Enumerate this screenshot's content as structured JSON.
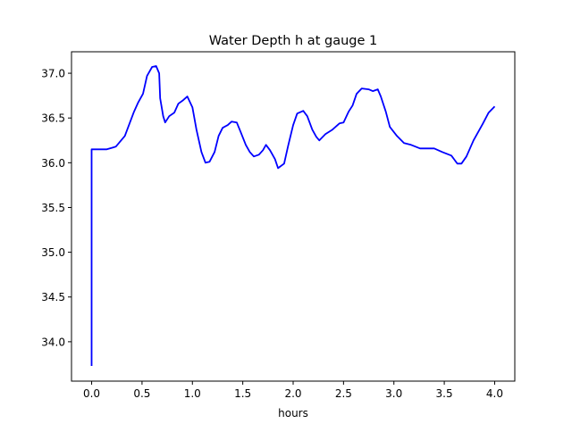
{
  "chart_data": {
    "type": "line",
    "title": "Water Depth h at gauge 1",
    "xlabel": "hours",
    "ylabel": "",
    "xlim": [
      -0.2,
      4.2
    ],
    "ylim": [
      33.56,
      37.24
    ],
    "xticks": [
      0.0,
      0.5,
      1.0,
      1.5,
      2.0,
      2.5,
      3.0,
      3.5,
      4.0
    ],
    "xtick_labels": [
      "0.0",
      "0.5",
      "1.0",
      "1.5",
      "2.0",
      "2.5",
      "3.0",
      "3.5",
      "4.0"
    ],
    "yticks": [
      34.0,
      34.5,
      35.0,
      35.5,
      36.0,
      36.5,
      37.0
    ],
    "ytick_labels": [
      "34.0",
      "34.5",
      "35.0",
      "35.5",
      "36.0",
      "36.5",
      "37.0"
    ],
    "grid": false,
    "series": [
      {
        "name": "h",
        "color": "#0000ff",
        "x": [
          0.0,
          0.0,
          0.15,
          0.24,
          0.33,
          0.42,
          0.46,
          0.51,
          0.55,
          0.6,
          0.64,
          0.67,
          0.68,
          0.71,
          0.73,
          0.77,
          0.82,
          0.86,
          0.91,
          0.95,
          1.0,
          1.04,
          1.09,
          1.13,
          1.17,
          1.22,
          1.26,
          1.3,
          1.35,
          1.39,
          1.44,
          1.48,
          1.53,
          1.57,
          1.61,
          1.66,
          1.7,
          1.73,
          1.77,
          1.82,
          1.85,
          1.91,
          1.95,
          2.0,
          2.04,
          2.1,
          2.14,
          2.19,
          2.23,
          2.26,
          2.32,
          2.39,
          2.46,
          2.5,
          2.55,
          2.59,
          2.63,
          2.68,
          2.75,
          2.79,
          2.84,
          2.87,
          2.92,
          2.96,
          3.03,
          3.1,
          3.17,
          3.26,
          3.34,
          3.4,
          3.48,
          3.57,
          3.63,
          3.67,
          3.72,
          3.79,
          3.88,
          3.94,
          4.0
        ],
        "y": [
          33.73,
          36.15,
          36.15,
          36.18,
          36.3,
          36.57,
          36.67,
          36.77,
          36.97,
          37.07,
          37.08,
          37.0,
          36.72,
          36.52,
          36.45,
          36.52,
          36.56,
          36.66,
          36.7,
          36.74,
          36.62,
          36.37,
          36.12,
          36.0,
          36.01,
          36.12,
          36.3,
          36.39,
          36.42,
          36.46,
          36.45,
          36.34,
          36.2,
          36.12,
          36.07,
          36.09,
          36.14,
          36.2,
          36.14,
          36.04,
          35.94,
          35.99,
          36.19,
          36.42,
          36.55,
          36.58,
          36.52,
          36.37,
          36.29,
          36.25,
          36.32,
          36.37,
          36.44,
          36.45,
          36.57,
          36.64,
          36.77,
          36.83,
          36.82,
          36.8,
          36.82,
          36.74,
          36.57,
          36.4,
          36.3,
          36.22,
          36.2,
          36.16,
          36.16,
          36.16,
          36.12,
          36.08,
          35.99,
          35.99,
          36.07,
          36.25,
          36.43,
          36.56,
          36.63
        ]
      }
    ]
  }
}
